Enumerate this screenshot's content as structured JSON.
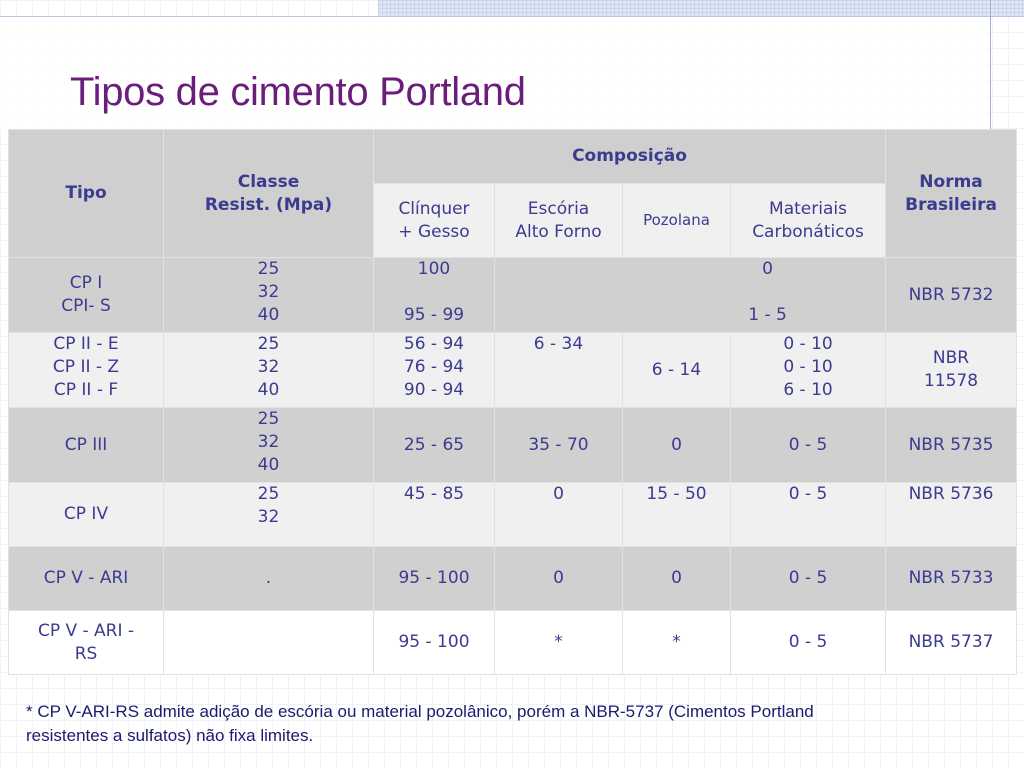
{
  "title": "Tipos de cimento Portland",
  "headers": {
    "tipo": "Tipo",
    "classe_l1": "Classe",
    "classe_l2": "Resist. (Mpa)",
    "composicao": "Composição",
    "norma_l1": "Norma",
    "norma_l2": "Brasileira",
    "clinquer_l1": "Clínquer",
    "clinquer_l2": "+ Gesso",
    "escoria_l1": "Escória",
    "escoria_l2": "Alto Forno",
    "pozolana": "Pozolana",
    "materiais_l1": "Materiais",
    "materiais_l2": "Carbonáticos"
  },
  "rows": [
    {
      "tipo": [
        "CP I",
        "CPI- S"
      ],
      "classe": [
        "25",
        "32",
        "40"
      ],
      "clinquer": [
        "100",
        "95 - 99"
      ],
      "pozolana_merged": [
        "0",
        "1 - 5"
      ],
      "norma": [
        "NBR 5732"
      ]
    },
    {
      "tipo": [
        "CP II - E",
        "CP II - Z",
        "CP II - F"
      ],
      "classe": [
        "25",
        "32",
        "40"
      ],
      "clinquer": [
        "56 - 94",
        "76 - 94",
        "90 - 94"
      ],
      "escoria": [
        "6 - 34"
      ],
      "pozolana": [
        "6 - 14"
      ],
      "materiais": [
        "0 - 10",
        "0 - 10",
        "6 - 10"
      ],
      "norma": [
        "NBR",
        "11578"
      ]
    },
    {
      "tipo": [
        "CP III"
      ],
      "classe": [
        "25",
        "32",
        "40"
      ],
      "clinquer": [
        "25 - 65"
      ],
      "escoria": [
        "35 - 70"
      ],
      "pozolana": [
        "0"
      ],
      "materiais": [
        "0 - 5"
      ],
      "norma": [
        "NBR 5735"
      ]
    },
    {
      "tipo": [
        "CP IV"
      ],
      "classe": [
        "25",
        "32"
      ],
      "clinquer": [
        "45 - 85"
      ],
      "escoria": [
        "0"
      ],
      "pozolana": [
        "15 - 50"
      ],
      "materiais": [
        "0 - 5"
      ],
      "norma": [
        "NBR 5736"
      ]
    },
    {
      "tipo": [
        "CP V - ARI"
      ],
      "classe": [
        "."
      ],
      "clinquer": [
        "95 - 100"
      ],
      "escoria": [
        "0"
      ],
      "pozolana": [
        "0"
      ],
      "materiais": [
        "0 - 5"
      ],
      "norma": [
        "NBR 5733"
      ]
    },
    {
      "tipo": [
        "CP V - ARI -",
        "RS"
      ],
      "classe": [],
      "clinquer": [
        "95 - 100"
      ],
      "escoria": [
        "*"
      ],
      "pozolana": [
        "*"
      ],
      "materiais": [
        "0 - 5"
      ],
      "norma": [
        "NBR 5737"
      ]
    }
  ],
  "footnote_l1": "* CP V-ARI-RS admite adição de escória ou material pozolânico, porém a NBR-5737 (Cimentos Portland",
  "footnote_l2": "resistentes a sulfatos) não fixa limites."
}
